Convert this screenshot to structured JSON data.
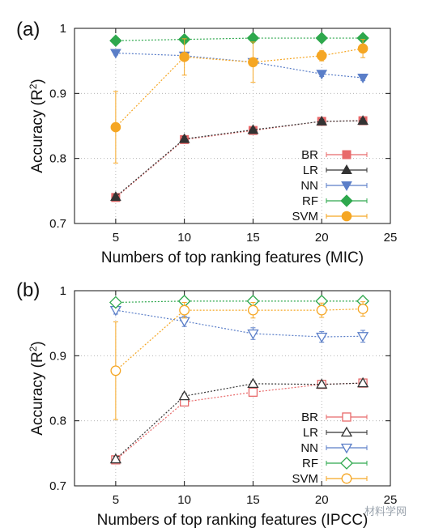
{
  "watermark": "材料学网",
  "chart_data": [
    {
      "type": "line",
      "panel_label": "(a)",
      "xlabel": "Numbers of top ranking features (MIC)",
      "ylabel": "Accuracy (R",
      "ylabel_sup": "2",
      "ylabel_close": ")",
      "xlim": [
        2,
        25
      ],
      "ylim": [
        0.7,
        1.0
      ],
      "xticks": [
        5,
        10,
        15,
        20,
        25
      ],
      "yticks": [
        0.7,
        0.8,
        0.9,
        1.0
      ],
      "xtick_labels": [
        "5",
        "10",
        "15",
        "20",
        "25"
      ],
      "ytick_labels": [
        "0.7",
        "0.8",
        "0.9",
        "1"
      ],
      "grid": true,
      "legend_position": "bottom-right",
      "markers_filled": true,
      "x": [
        5,
        10,
        15,
        20,
        23
      ],
      "series": [
        {
          "name": "BR",
          "color": "#e8696a",
          "marker": "square",
          "values": [
            0.74,
            0.829,
            0.843,
            0.857,
            0.858
          ],
          "errors": [
            0.004,
            0.004,
            0.003,
            0.003,
            0.003
          ]
        },
        {
          "name": "LR",
          "color": "#333333",
          "marker": "triangle-up",
          "values": [
            0.741,
            0.83,
            0.844,
            0.857,
            0.858
          ],
          "errors": [
            0.004,
            0.004,
            0.003,
            0.003,
            0.003
          ]
        },
        {
          "name": "NN",
          "color": "#5a7ec8",
          "marker": "triangle-down",
          "values": [
            0.962,
            0.958,
            0.948,
            0.93,
            0.924
          ],
          "errors": [
            0.003,
            0.004,
            0.003,
            0.004,
            0.004
          ]
        },
        {
          "name": "RF",
          "color": "#2ea84d",
          "marker": "diamond",
          "values": [
            0.981,
            0.983,
            0.985,
            0.985,
            0.985
          ],
          "errors": [
            0.002,
            0.002,
            0.002,
            0.002,
            0.002
          ]
        },
        {
          "name": "SVM",
          "color": "#f5a623",
          "marker": "circle",
          "values": [
            0.848,
            0.956,
            0.948,
            0.958,
            0.969
          ],
          "errors": [
            0.055,
            0.028,
            0.031,
            0.008,
            0.014
          ]
        }
      ]
    },
    {
      "type": "line",
      "panel_label": "(b)",
      "xlabel": "Numbers of top ranking features (IPCC)",
      "ylabel": "Accuracy (R",
      "ylabel_sup": "2",
      "ylabel_close": ")",
      "xlim": [
        2,
        25
      ],
      "ylim": [
        0.7,
        1.0
      ],
      "xticks": [
        5,
        10,
        15,
        20,
        25
      ],
      "yticks": [
        0.7,
        0.8,
        0.9,
        1.0
      ],
      "xtick_labels": [
        "5",
        "10",
        "15",
        "20",
        "25"
      ],
      "ytick_labels": [
        "0.7",
        "0.8",
        "0.9",
        "1"
      ],
      "grid": true,
      "legend_position": "bottom-right",
      "markers_filled": false,
      "x": [
        5,
        10,
        15,
        20,
        23
      ],
      "series": [
        {
          "name": "BR",
          "color": "#e8696a",
          "marker": "square",
          "values": [
            0.74,
            0.829,
            0.844,
            0.856,
            0.858
          ],
          "errors": [
            0.004,
            0.004,
            0.004,
            0.003,
            0.003
          ]
        },
        {
          "name": "LR",
          "color": "#333333",
          "marker": "triangle-up",
          "values": [
            0.741,
            0.838,
            0.857,
            0.856,
            0.858
          ],
          "errors": [
            0.004,
            0.004,
            0.004,
            0.003,
            0.003
          ]
        },
        {
          "name": "NN",
          "color": "#5a7ec8",
          "marker": "triangle-down",
          "values": [
            0.97,
            0.953,
            0.934,
            0.929,
            0.93
          ],
          "errors": [
            0.006,
            0.008,
            0.009,
            0.008,
            0.009
          ]
        },
        {
          "name": "RF",
          "color": "#2ea84d",
          "marker": "diamond",
          "values": [
            0.982,
            0.984,
            0.984,
            0.984,
            0.984
          ],
          "errors": [
            0.004,
            0.004,
            0.004,
            0.004,
            0.004
          ]
        },
        {
          "name": "SVM",
          "color": "#f5a623",
          "marker": "circle",
          "values": [
            0.877,
            0.97,
            0.97,
            0.97,
            0.972
          ],
          "errors": [
            0.075,
            0.012,
            0.012,
            0.011,
            0.011
          ]
        }
      ]
    }
  ]
}
